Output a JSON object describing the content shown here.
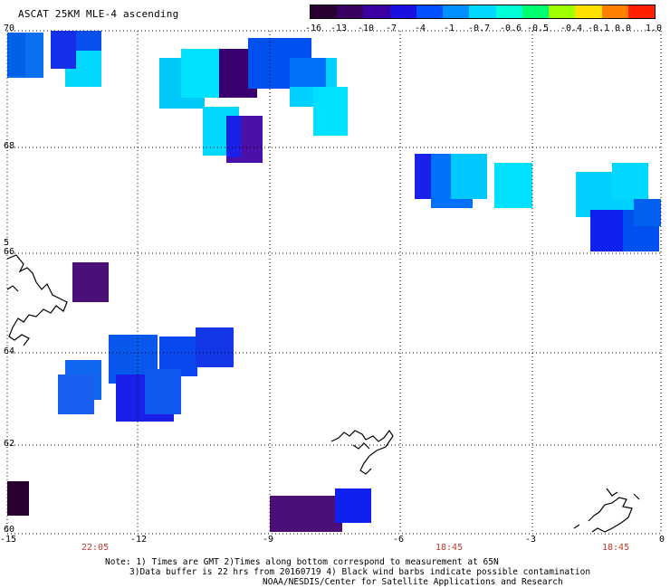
{
  "header": {
    "title": "ASCAT 25KM MLE-4 ascending"
  },
  "colorbar": {
    "ticks": [
      "-16",
      "-13",
      "-10",
      "-7",
      "-4",
      "-1",
      "-0.7",
      "-0.6",
      "-0.5",
      "-0.4",
      "-0.1",
      "0.0",
      "1.0"
    ],
    "colors": [
      "#2a0033",
      "#3a0060",
      "#3a00a0",
      "#1a10e0",
      "#0050ff",
      "#0090ff",
      "#00d8ff",
      "#00ffd8",
      "#00ff70",
      "#a0ff00",
      "#ffe000",
      "#ff8000",
      "#ff2000"
    ]
  },
  "map": {
    "lat_labels": [
      "70",
      "68",
      "66",
      "64",
      "62",
      "60"
    ],
    "lon_labels": [
      "-15",
      "-12",
      "-9",
      "-6",
      "-3",
      "0"
    ],
    "time_labels": [
      "22:05",
      "18:45",
      "18:45"
    ]
  },
  "footer": {
    "line1": "Note: 1) Times are GMT 2)Times along bottom correspond to measurement at 65N",
    "line2": "3)Data buffer is 22 hrs from 20160719 4) Black wind barbs indicate possible contamination",
    "line3": "NOAA/NESDIS/Center for Satellite Applications and Research"
  },
  "edge_marker": "5"
}
